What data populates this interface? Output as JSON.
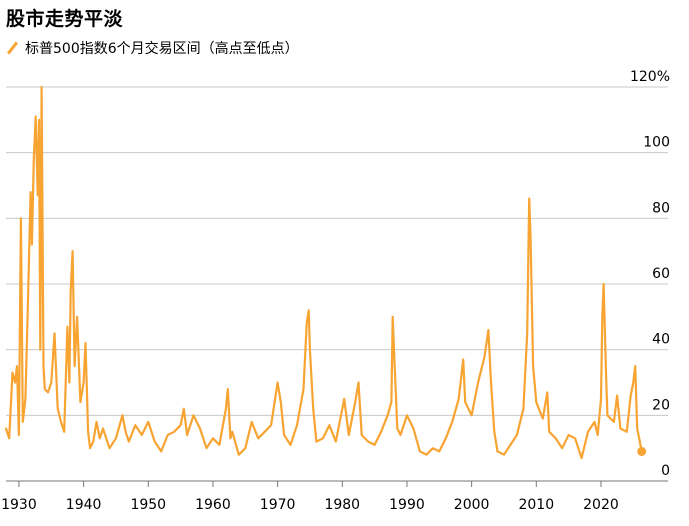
{
  "title": "股市走势平淡",
  "legend": {
    "label": "标普500指数6个月交易区间（高点至低点）",
    "color": "#f7a433"
  },
  "chart_data": {
    "type": "line",
    "title": "股市走势平淡",
    "xlabel": "",
    "ylabel": "",
    "xlim": [
      1928,
      2026.5
    ],
    "ylim": [
      0,
      120
    ],
    "x_ticks": [
      1930,
      1940,
      1950,
      1960,
      1970,
      1980,
      1990,
      2000,
      2010,
      2020
    ],
    "x_tick_labels": [
      "1930",
      "1940",
      "1950",
      "1960",
      "1970",
      "1980",
      "1990",
      "2000",
      "2010",
      "2020"
    ],
    "y_ticks": [
      0,
      20,
      40,
      60,
      80,
      100,
      120
    ],
    "y_tick_labels": [
      "0",
      "20",
      "40",
      "60",
      "80",
      "100",
      "120%"
    ],
    "grid": true,
    "series": [
      {
        "name": "标普500指数6个月交易区间（高点至低点）",
        "color": "#f7a433",
        "points": [
          [
            1928.0,
            16
          ],
          [
            1928.5,
            13
          ],
          [
            1929.0,
            33
          ],
          [
            1929.4,
            30
          ],
          [
            1929.7,
            35
          ],
          [
            1930.0,
            14
          ],
          [
            1930.3,
            80
          ],
          [
            1930.6,
            18
          ],
          [
            1931.0,
            25
          ],
          [
            1931.4,
            55
          ],
          [
            1931.8,
            88
          ],
          [
            1932.0,
            72
          ],
          [
            1932.3,
            98
          ],
          [
            1932.6,
            111
          ],
          [
            1932.9,
            87
          ],
          [
            1933.1,
            110
          ],
          [
            1933.3,
            40
          ],
          [
            1933.5,
            120
          ],
          [
            1933.8,
            35
          ],
          [
            1934.0,
            28
          ],
          [
            1934.5,
            27
          ],
          [
            1935.0,
            30
          ],
          [
            1935.5,
            45
          ],
          [
            1936.0,
            22
          ],
          [
            1936.5,
            18
          ],
          [
            1937.0,
            15
          ],
          [
            1937.5,
            47
          ],
          [
            1937.8,
            30
          ],
          [
            1938.0,
            58
          ],
          [
            1938.3,
            70
          ],
          [
            1938.6,
            35
          ],
          [
            1939.0,
            50
          ],
          [
            1939.5,
            24
          ],
          [
            1940.0,
            30
          ],
          [
            1940.3,
            42
          ],
          [
            1940.7,
            15
          ],
          [
            1941.0,
            10
          ],
          [
            1941.5,
            12
          ],
          [
            1942.0,
            18
          ],
          [
            1942.5,
            13
          ],
          [
            1943.0,
            16
          ],
          [
            1944.0,
            10
          ],
          [
            1945.0,
            13
          ],
          [
            1946.0,
            20
          ],
          [
            1946.5,
            15
          ],
          [
            1947.0,
            12
          ],
          [
            1948.0,
            17
          ],
          [
            1949.0,
            14
          ],
          [
            1950.0,
            18
          ],
          [
            1951.0,
            12
          ],
          [
            1952.0,
            9
          ],
          [
            1953.0,
            14
          ],
          [
            1954.0,
            15
          ],
          [
            1955.0,
            17
          ],
          [
            1955.5,
            22
          ],
          [
            1956.0,
            14
          ],
          [
            1957.0,
            20
          ],
          [
            1958.0,
            16
          ],
          [
            1959.0,
            10
          ],
          [
            1960.0,
            13
          ],
          [
            1961.0,
            11
          ],
          [
            1962.0,
            22
          ],
          [
            1962.3,
            28
          ],
          [
            1962.7,
            13
          ],
          [
            1963.0,
            15
          ],
          [
            1964.0,
            8
          ],
          [
            1965.0,
            10
          ],
          [
            1966.0,
            18
          ],
          [
            1967.0,
            13
          ],
          [
            1968.0,
            15
          ],
          [
            1969.0,
            17
          ],
          [
            1970.0,
            30
          ],
          [
            1970.5,
            24
          ],
          [
            1971.0,
            14
          ],
          [
            1972.0,
            11
          ],
          [
            1973.0,
            17
          ],
          [
            1974.0,
            28
          ],
          [
            1974.5,
            48
          ],
          [
            1974.8,
            52
          ],
          [
            1975.0,
            40
          ],
          [
            1975.5,
            22
          ],
          [
            1976.0,
            12
          ],
          [
            1977.0,
            13
          ],
          [
            1978.0,
            17
          ],
          [
            1979.0,
            12
          ],
          [
            1980.0,
            22
          ],
          [
            1980.3,
            25
          ],
          [
            1981.0,
            14
          ],
          [
            1982.0,
            24
          ],
          [
            1982.5,
            30
          ],
          [
            1983.0,
            14
          ],
          [
            1984.0,
            12
          ],
          [
            1985.0,
            11
          ],
          [
            1986.0,
            15
          ],
          [
            1987.0,
            20
          ],
          [
            1987.6,
            24
          ],
          [
            1987.8,
            50
          ],
          [
            1988.0,
            40
          ],
          [
            1988.5,
            16
          ],
          [
            1989.0,
            14
          ],
          [
            1990.0,
            20
          ],
          [
            1991.0,
            16
          ],
          [
            1992.0,
            9
          ],
          [
            1993.0,
            8
          ],
          [
            1994.0,
            10
          ],
          [
            1995.0,
            9
          ],
          [
            1996.0,
            13
          ],
          [
            1997.0,
            18
          ],
          [
            1998.0,
            25
          ],
          [
            1998.7,
            37
          ],
          [
            1999.0,
            24
          ],
          [
            2000.0,
            20
          ],
          [
            2001.0,
            30
          ],
          [
            2002.0,
            38
          ],
          [
            2002.6,
            46
          ],
          [
            2003.0,
            30
          ],
          [
            2003.5,
            15
          ],
          [
            2004.0,
            9
          ],
          [
            2005.0,
            8
          ],
          [
            2006.0,
            11
          ],
          [
            2007.0,
            14
          ],
          [
            2008.0,
            22
          ],
          [
            2008.6,
            45
          ],
          [
            2008.9,
            86
          ],
          [
            2009.1,
            75
          ],
          [
            2009.5,
            35
          ],
          [
            2010.0,
            24
          ],
          [
            2011.0,
            19
          ],
          [
            2011.7,
            27
          ],
          [
            2012.0,
            15
          ],
          [
            2013.0,
            13
          ],
          [
            2014.0,
            10
          ],
          [
            2015.0,
            14
          ],
          [
            2016.0,
            13
          ],
          [
            2017.0,
            7
          ],
          [
            2018.0,
            15
          ],
          [
            2019.0,
            18
          ],
          [
            2019.5,
            14
          ],
          [
            2020.0,
            25
          ],
          [
            2020.2,
            50
          ],
          [
            2020.4,
            60
          ],
          [
            2020.8,
            32
          ],
          [
            2021.0,
            20
          ],
          [
            2022.0,
            18
          ],
          [
            2022.5,
            26
          ],
          [
            2023.0,
            16
          ],
          [
            2024.0,
            15
          ],
          [
            2024.6,
            26
          ],
          [
            2025.0,
            30
          ],
          [
            2025.3,
            35
          ],
          [
            2025.6,
            16
          ],
          [
            2026.0,
            12
          ],
          [
            2026.3,
            9
          ]
        ]
      }
    ]
  }
}
